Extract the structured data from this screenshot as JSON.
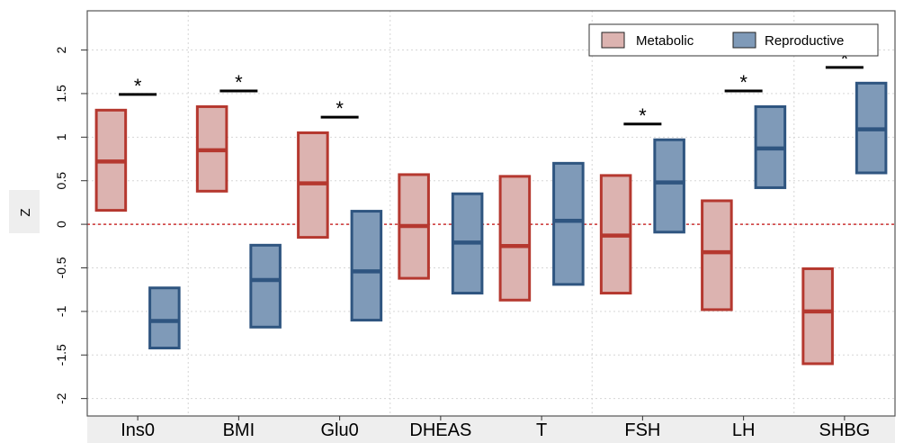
{
  "chart_data": {
    "type": "boxplot",
    "title": "",
    "xlabel": "",
    "ylabel": "Z",
    "ylim": [
      -2.2,
      2.45
    ],
    "yticks": [
      -2,
      -1.5,
      -1,
      -0.5,
      0,
      0.5,
      1,
      1.5,
      2
    ],
    "ytick_labels": [
      "-2",
      "-1.5",
      "-1",
      "-0.5",
      "0",
      "0.5",
      "1",
      "1.5",
      "2"
    ],
    "reference_line": 0,
    "grid": true,
    "legend_position": "top-right",
    "categories": [
      "Ins0",
      "BMI",
      "Glu0",
      "DHEAS",
      "T",
      "FSH",
      "LH",
      "SHBG"
    ],
    "series": [
      {
        "name": "Metabolic",
        "fill": "#dcb3b0",
        "stroke": "#b5382f",
        "boxes": [
          {
            "low": 0.16,
            "median": 0.72,
            "high": 1.31
          },
          {
            "low": 0.38,
            "median": 0.85,
            "high": 1.35
          },
          {
            "low": -0.15,
            "median": 0.47,
            "high": 1.05
          },
          {
            "low": -0.62,
            "median": -0.02,
            "high": 0.57
          },
          {
            "low": -0.87,
            "median": -0.25,
            "high": 0.55
          },
          {
            "low": -0.79,
            "median": -0.13,
            "high": 0.56
          },
          {
            "low": -0.98,
            "median": -0.32,
            "high": 0.27
          },
          {
            "low": -1.6,
            "median": -1.0,
            "high": -0.51
          }
        ]
      },
      {
        "name": "Reproductive",
        "fill": "#7f9ab8",
        "stroke": "#2f5580",
        "boxes": [
          {
            "low": -1.42,
            "median": -1.11,
            "high": -0.73
          },
          {
            "low": -1.18,
            "median": -0.64,
            "high": -0.24
          },
          {
            "low": -1.1,
            "median": -0.54,
            "high": 0.15
          },
          {
            "low": -0.79,
            "median": -0.21,
            "high": 0.35
          },
          {
            "low": -0.69,
            "median": 0.04,
            "high": 0.7
          },
          {
            "low": -0.09,
            "median": 0.48,
            "high": 0.97
          },
          {
            "low": 0.42,
            "median": 0.87,
            "high": 1.35
          },
          {
            "low": 0.59,
            "median": 1.09,
            "high": 1.62
          }
        ]
      }
    ],
    "significance": [
      {
        "category": "Ins0",
        "label": "*"
      },
      {
        "category": "BMI",
        "label": "*"
      },
      {
        "category": "Glu0",
        "label": "*"
      },
      {
        "category": "FSH",
        "label": "*"
      },
      {
        "category": "LH",
        "label": "*"
      },
      {
        "category": "SHBG",
        "label": "*"
      }
    ]
  }
}
